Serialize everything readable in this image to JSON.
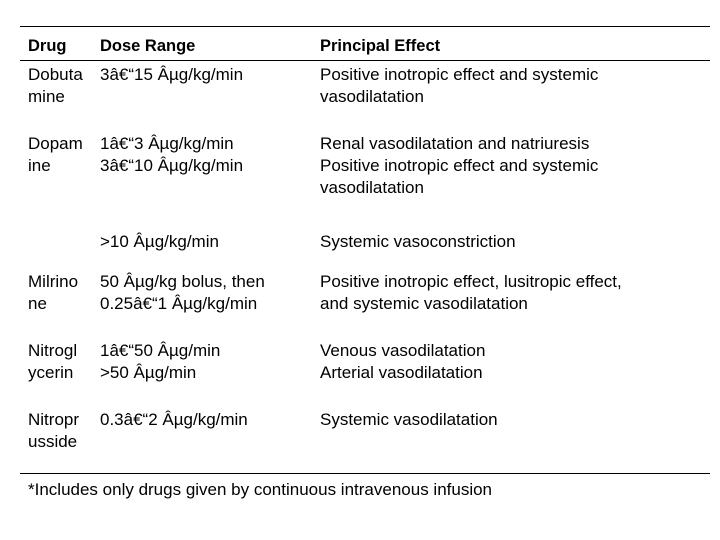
{
  "table": {
    "headers": {
      "drug": "Drug",
      "dose": "Dose Range",
      "effect": "Principal Effect"
    },
    "rows": [
      {
        "drug": "Dobuta\nmine",
        "dose": "3â€“15 Âµg/kg/min",
        "effect": "Positive inotropic effect and systemic\nvasodilatation"
      },
      {
        "drug": "Dopam\nine",
        "dose": "1â€“3 Âµg/kg/min\n3â€“10 Âµg/kg/min",
        "effect": "Renal vasodilatation and natriuresis\nPositive inotropic effect and systemic\nvasodilatation"
      },
      {
        "drug": "",
        "dose": ">10 Âµg/kg/min",
        "effect": "Systemic vasoconstriction"
      },
      {
        "drug": "Milrino\nne",
        "dose": "50 Âµg/kg bolus, then\n0.25â€“1 Âµg/kg/min",
        "effect": "Positive inotropic effect, lusitropic effect,\nand systemic vasodilatation"
      },
      {
        "drug": "Nitrogl\nycerin",
        "dose": "1â€“50 Âµg/min\n>50 Âµg/min",
        "effect": "Venous vasodilatation\nArterial vasodilatation"
      },
      {
        "drug": "Nitropr\nusside",
        "dose": "0.3â€“2 Âµg/kg/min",
        "effect": "Systemic vasodilatation"
      }
    ],
    "footnote": "*Includes only drugs given by continuous intravenous infusion"
  }
}
